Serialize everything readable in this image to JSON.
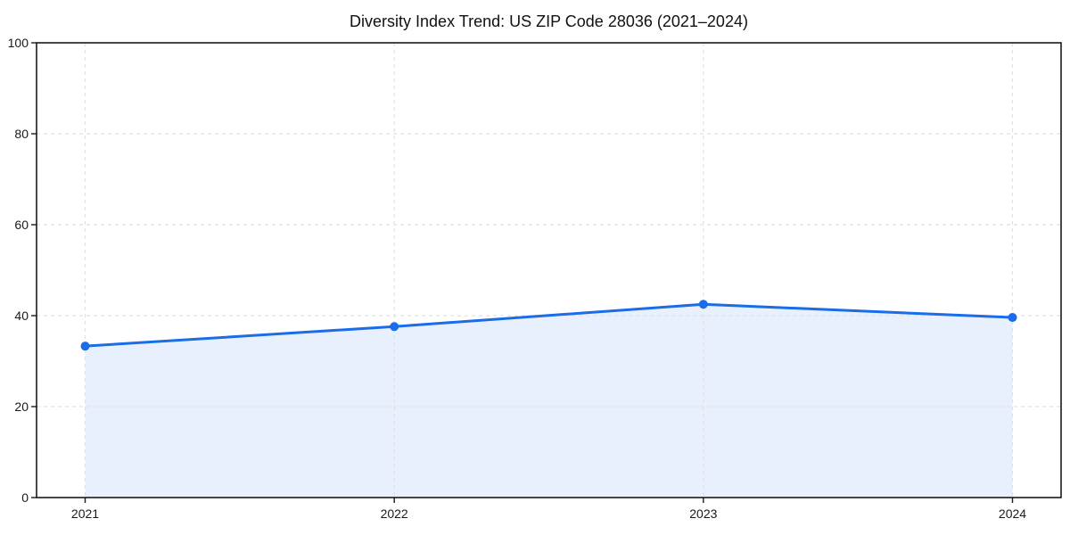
{
  "title": "Diversity Index Trend: US ZIP Code 28036 (2021–2024)",
  "chart_data": {
    "type": "line",
    "area_fill": true,
    "title": "Diversity Index Trend: US ZIP Code 28036 (2021–2024)",
    "categories": [
      "2021",
      "2022",
      "2023",
      "2024"
    ],
    "values": [
      33.3,
      37.6,
      42.5,
      39.6
    ],
    "xlabel": "",
    "ylabel": "",
    "ylim": [
      0,
      100
    ],
    "yticks": [
      0,
      20,
      40,
      60,
      80,
      100
    ],
    "grid": true,
    "grid_style": "dashed",
    "legend": "none",
    "marker": "circle",
    "colors": {
      "line": "#1a6ce8",
      "marker": "#1a6ce8",
      "area": "rgba(26,108,232,0.10)",
      "grid": "#e1e1e1",
      "spine": "#1a1a1a",
      "text": "#1a1a1a",
      "background": "#ffffff"
    }
  }
}
